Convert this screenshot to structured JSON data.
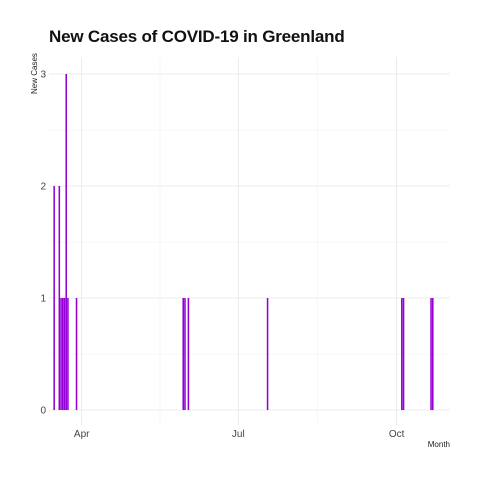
{
  "chart_data": {
    "type": "bar",
    "title": "New Cases of COVID-19 in Greenland",
    "xlabel": "Month",
    "ylabel": "New Cases",
    "ylim": [
      0,
      3
    ],
    "y_ticks": [
      0,
      1,
      2,
      3
    ],
    "x_ticks": [
      {
        "label": "Apr",
        "date": "2020-04-01"
      },
      {
        "label": "Jul",
        "date": "2020-07-01"
      },
      {
        "label": "Oct",
        "date": "2020-10-01"
      }
    ],
    "xlim": [
      "2020-03-13",
      "2020-11-01"
    ],
    "grid": true,
    "bar_color": "#9400D3",
    "points": [
      {
        "date": "2020-03-16",
        "value": 2
      },
      {
        "date": "2020-03-19",
        "value": 2
      },
      {
        "date": "2020-03-20",
        "value": 1
      },
      {
        "date": "2020-03-21",
        "value": 1
      },
      {
        "date": "2020-03-22",
        "value": 1
      },
      {
        "date": "2020-03-23",
        "value": 3
      },
      {
        "date": "2020-03-24",
        "value": 1
      },
      {
        "date": "2020-03-29",
        "value": 1
      },
      {
        "date": "2020-05-30",
        "value": 1
      },
      {
        "date": "2020-05-31",
        "value": 1
      },
      {
        "date": "2020-06-02",
        "value": 1
      },
      {
        "date": "2020-07-18",
        "value": 1
      },
      {
        "date": "2020-10-04",
        "value": 1
      },
      {
        "date": "2020-10-05",
        "value": 1
      },
      {
        "date": "2020-10-21",
        "value": 1
      },
      {
        "date": "2020-10-22",
        "value": 1
      }
    ]
  }
}
